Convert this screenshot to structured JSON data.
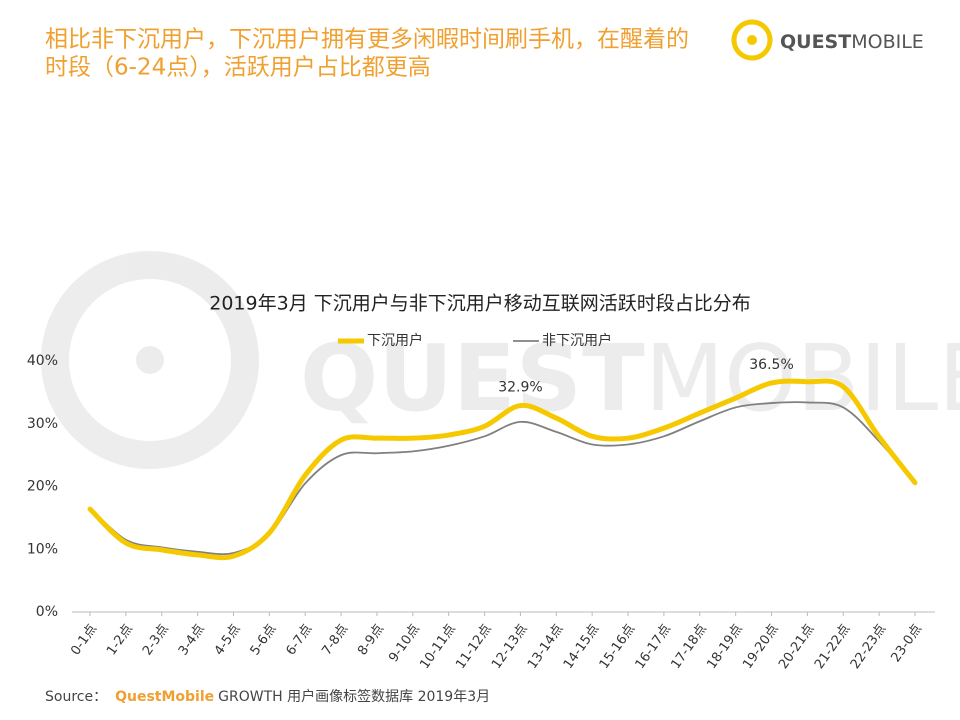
{
  "header": {
    "title_lines": [
      "相比非下沉用户，下沉用户拥有更多闲暇时间刷手机，在醒着的",
      "时段（6-24点），活跃用户占比都更高"
    ],
    "logo_bold": "QUEST",
    "logo_light": "MOBILE"
  },
  "chart_data": {
    "type": "line",
    "title": "2019年3月 下沉用户与非下沉用户移动互联网活跃时段占比分布",
    "categories": [
      "0-1点",
      "1-2点",
      "2-3点",
      "3-4点",
      "4-5点",
      "5-6点",
      "6-7点",
      "7-8点",
      "8-9点",
      "9-10点",
      "10-11点",
      "11-12点",
      "12-13点",
      "13-14点",
      "14-15点",
      "15-16点",
      "16-17点",
      "17-18点",
      "18-19点",
      "19-20点",
      "20-21点",
      "21-22点",
      "22-23点",
      "23-0点"
    ],
    "series": [
      {
        "name": "下沉用户",
        "color": "#f5c800",
        "values": [
          16.4,
          11.0,
          9.9,
          9.1,
          8.9,
          12.6,
          21.8,
          27.4,
          27.7,
          27.7,
          28.2,
          29.6,
          32.9,
          30.9,
          28.0,
          27.7,
          29.3,
          31.7,
          34.1,
          36.5,
          36.7,
          35.9,
          27.9,
          20.6
        ],
        "value_labels": [
          null,
          null,
          null,
          null,
          null,
          null,
          null,
          null,
          null,
          null,
          null,
          null,
          "32.9%",
          null,
          null,
          null,
          null,
          null,
          null,
          "36.5%",
          null,
          null,
          null,
          null
        ]
      },
      {
        "name": "非下沉用户",
        "color": "#808080",
        "values": [
          16.6,
          11.5,
          10.3,
          9.6,
          9.4,
          12.4,
          20.5,
          25.0,
          25.3,
          25.6,
          26.5,
          28.0,
          30.3,
          28.7,
          26.7,
          26.7,
          28.0,
          30.4,
          32.6,
          33.3,
          33.4,
          32.6,
          27.2,
          20.4
        ]
      }
    ],
    "ylim": [
      0,
      40
    ],
    "yticks": [
      {
        "value": 0,
        "label": "0%"
      },
      {
        "value": 10,
        "label": "10%"
      },
      {
        "value": 20,
        "label": "20%"
      },
      {
        "value": 30,
        "label": "30%"
      },
      {
        "value": 40,
        "label": "40%"
      }
    ],
    "grid": false
  },
  "footer": {
    "prefix": "Source：",
    "brand": "QuestMobile",
    "rest": "GROWTH 用户画像标签数据库 2019年3月"
  }
}
